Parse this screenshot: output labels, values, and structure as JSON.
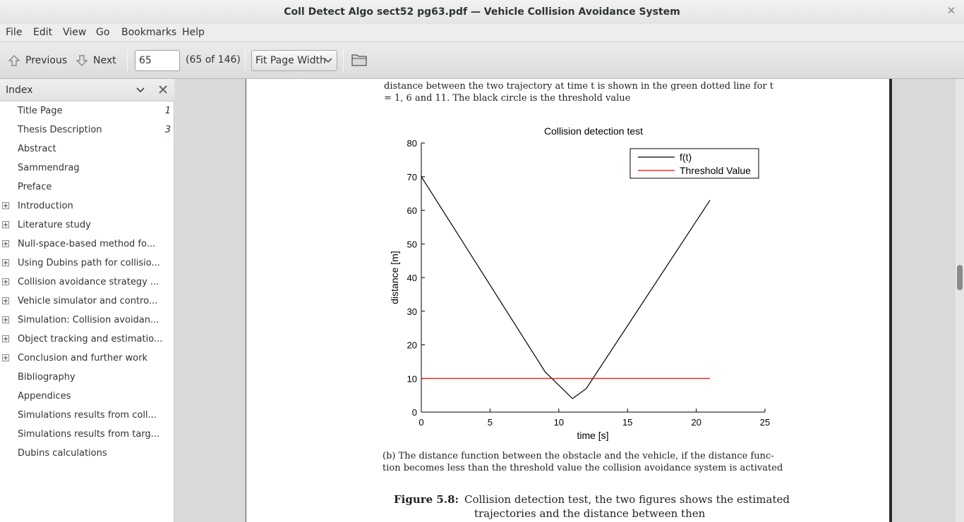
{
  "window": {
    "title": "Coll Detect Algo sect52 pg63.pdf — Vehicle Collision Avoidance System"
  },
  "menubar": {
    "items": [
      "File",
      "Edit",
      "View",
      "Go",
      "Bookmarks",
      "Help"
    ]
  },
  "toolbar": {
    "previous_label": "Previous",
    "next_label": "Next",
    "page_value": "65",
    "page_count": "(65 of 146)",
    "zoom_value": "Fit Page Width"
  },
  "sidebar": {
    "title": "Index",
    "items": [
      {
        "label": "Title Page",
        "page": "1",
        "expandable": false
      },
      {
        "label": "Thesis Description",
        "page": "3",
        "expandable": false
      },
      {
        "label": "Abstract",
        "page": "",
        "expandable": false
      },
      {
        "label": "Sammendrag",
        "page": "",
        "expandable": false
      },
      {
        "label": "Preface",
        "page": "",
        "expandable": false
      },
      {
        "label": "Introduction",
        "page": "",
        "expandable": true
      },
      {
        "label": "Literature study",
        "page": "",
        "expandable": true
      },
      {
        "label": "Null-space-based method fo...",
        "page": "",
        "expandable": true
      },
      {
        "label": "Using Dubins path for collisio...",
        "page": "",
        "expandable": true
      },
      {
        "label": "Collision avoidance strategy ...",
        "page": "",
        "expandable": true
      },
      {
        "label": "Vehicle simulator and contro...",
        "page": "",
        "expandable": true
      },
      {
        "label": "Simulation: Collision avoidan...",
        "page": "",
        "expandable": true
      },
      {
        "label": "Object tracking and estimatio...",
        "page": "",
        "expandable": true
      },
      {
        "label": "Conclusion and further work",
        "page": "",
        "expandable": true
      },
      {
        "label": "Bibliography",
        "page": "",
        "expandable": false
      },
      {
        "label": "Appendices",
        "page": "",
        "expandable": false
      },
      {
        "label": "Simulations results from coll...",
        "page": "",
        "expandable": false
      },
      {
        "label": "Simulations results from targ...",
        "page": "",
        "expandable": false
      },
      {
        "label": "Dubins calculations",
        "page": "",
        "expandable": false
      }
    ]
  },
  "document": {
    "top_line_1": "distance between the two trajectory at time t is shown in the green dotted line for t",
    "top_line_2": "= 1, 6 and 11.  The black circle is the threshold value",
    "caption_b_line_1": "(b)  The distance function between the obstacle and the vehicle, if the distance func-",
    "caption_b_line_2": "tion becomes less than the threshold value the collision avoidance system is activated",
    "figure_label": "Figure 5.8:",
    "figure_caption_line_1": "Collision detection test, the two figures shows the estimated",
    "figure_caption_line_2": "trajectories and the distance between then"
  },
  "chart_data": {
    "type": "line",
    "title": "Collision detection test",
    "xlabel": "time [s]",
    "ylabel": "distance [m]",
    "xlim": [
      0,
      25
    ],
    "ylim": [
      0,
      80
    ],
    "xticks": [
      0,
      5,
      10,
      15,
      20,
      25
    ],
    "yticks": [
      0,
      10,
      20,
      30,
      40,
      50,
      60,
      70,
      80
    ],
    "grid": false,
    "legend_position": "top-right",
    "series": [
      {
        "name": "f(t)",
        "color": "#000000",
        "x": [
          0,
          9,
          10,
          11,
          12,
          21
        ],
        "y": [
          70,
          12,
          8,
          4,
          7,
          63
        ]
      },
      {
        "name": "Threshold Value",
        "color": "#ff0000",
        "x": [
          0,
          21
        ],
        "y": [
          10,
          10
        ]
      }
    ]
  }
}
